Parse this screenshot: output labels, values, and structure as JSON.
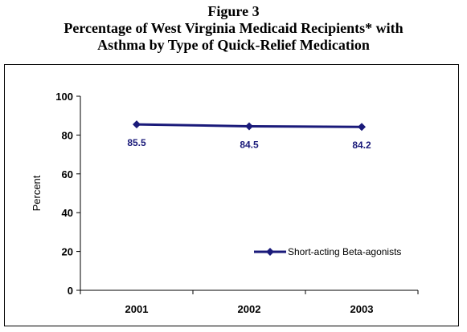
{
  "figure": {
    "label": "Figure 3",
    "title_line1": "Percentage of West Virginia Medicaid Recipients* with",
    "title_line2": "Asthma by Type of Quick-Relief Medication"
  },
  "colors": {
    "series": "#1a1a7a",
    "data_label": "#1a1a7a",
    "axis": "#000000"
  },
  "chart_data": {
    "type": "line",
    "categories": [
      "2001",
      "2002",
      "2003"
    ],
    "series": [
      {
        "name": "Short-acting Beta-agonists",
        "values": [
          85.5,
          84.5,
          84.2
        ]
      }
    ],
    "data_labels": [
      "85.5",
      "84.5",
      "84.2"
    ],
    "ylabel": "Percent",
    "xlabel": "",
    "ylim": [
      0,
      100
    ],
    "yticks": [
      0,
      20,
      40,
      60,
      80,
      100
    ],
    "ytick_labels": [
      "0",
      "20",
      "40",
      "60",
      "80",
      "100"
    ],
    "grid": false,
    "legend": "bottom-right",
    "marker": "diamond"
  }
}
